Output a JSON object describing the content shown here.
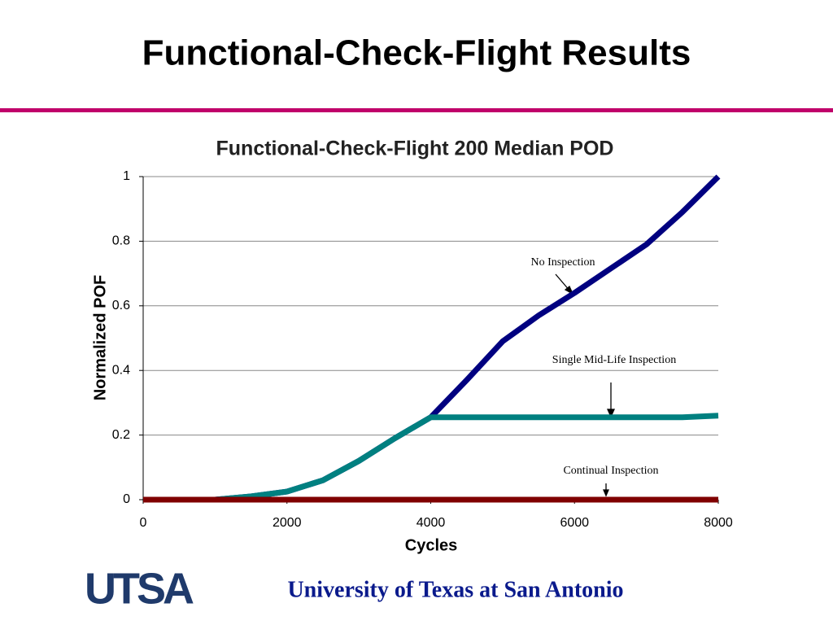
{
  "slide": {
    "title": "Functional-Check-Flight Results",
    "logo": "UTSA",
    "footer": "University of Texas at San Antonio"
  },
  "chart_data": {
    "type": "line",
    "title": "Functional-Check-Flight 200 Median POD",
    "x_label": "Cycles",
    "y_label": "Normalized POF",
    "x": [
      0,
      1000,
      1500,
      2000,
      2500,
      3000,
      3500,
      4000,
      4500,
      5000,
      5500,
      6000,
      6500,
      7000,
      7500,
      8000
    ],
    "series": [
      {
        "name": "No Inspection",
        "color": "#000080",
        "values": [
          0,
          0,
          0.01,
          0.025,
          0.06,
          0.12,
          0.19,
          0.255,
          0.37,
          0.49,
          0.57,
          0.64,
          0.715,
          0.79,
          0.89,
          1.0
        ]
      },
      {
        "name": "Single Mid-Life Inspection",
        "color": "#008080",
        "values": [
          0,
          0,
          0.01,
          0.025,
          0.06,
          0.12,
          0.19,
          0.255,
          0.255,
          0.255,
          0.255,
          0.255,
          0.255,
          0.255,
          0.255,
          0.26
        ]
      },
      {
        "name": "Continual Inspection",
        "color": "#800000",
        "values": [
          0,
          0,
          0,
          0,
          0,
          0,
          0,
          0,
          0,
          0,
          0,
          0,
          0,
          0,
          0,
          0
        ]
      }
    ],
    "xlim": [
      0,
      8000
    ],
    "xticks": [
      0,
      2000,
      4000,
      6000,
      8000
    ],
    "ylim": [
      0,
      1
    ],
    "yticks": [
      0,
      0.2,
      0.4,
      0.6,
      0.8,
      1
    ],
    "grid": true
  }
}
